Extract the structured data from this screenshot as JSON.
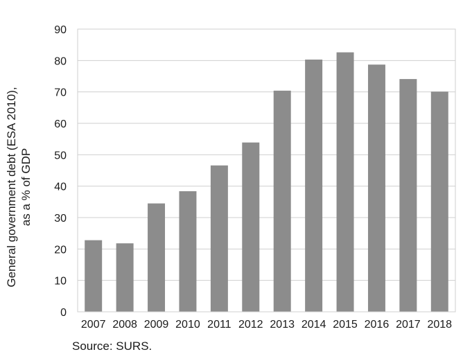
{
  "chart_data": {
    "type": "bar",
    "categories": [
      "2007",
      "2008",
      "2009",
      "2010",
      "2011",
      "2012",
      "2013",
      "2014",
      "2015",
      "2016",
      "2017",
      "2018"
    ],
    "values": [
      22.8,
      21.8,
      34.5,
      38.4,
      46.6,
      53.9,
      70.4,
      80.3,
      82.6,
      78.7,
      74.1,
      70.1
    ],
    "ylabel_lines": [
      "General government debt (ESA 2010),",
      "as a % of GDP"
    ],
    "ylim": [
      0,
      90
    ],
    "yticks": [
      0,
      10,
      20,
      30,
      40,
      50,
      60,
      70,
      80,
      90
    ],
    "grid": true,
    "bar_color": "#8c8c8c",
    "grid_color": "#cfcfcf"
  },
  "source_text": "Source: SURS."
}
